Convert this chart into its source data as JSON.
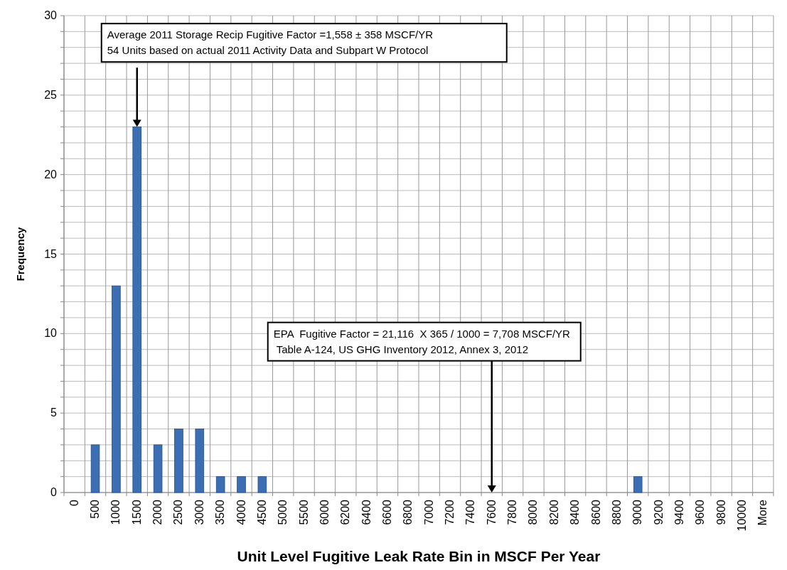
{
  "chart_data": {
    "type": "bar",
    "xlabel": "Unit Level Fugitive Leak Rate Bin in MSCF Per Year",
    "ylabel": "Frequency",
    "categories": [
      "0",
      "500",
      "1000",
      "1500",
      "2000",
      "2500",
      "3000",
      "3500",
      "4000",
      "4500",
      "5000",
      "5500",
      "6000",
      "6200",
      "6400",
      "6600",
      "6800",
      "7000",
      "7200",
      "7400",
      "7600",
      "7800",
      "8000",
      "8200",
      "8400",
      "8600",
      "8800",
      "9000",
      "9200",
      "9400",
      "9600",
      "9800",
      "10000",
      "More"
    ],
    "values": [
      0,
      3,
      13,
      23,
      3,
      4,
      4,
      1,
      1,
      1,
      0,
      0,
      0,
      0,
      0,
      0,
      0,
      0,
      0,
      0,
      0,
      0,
      0,
      0,
      0,
      0,
      0,
      1,
      0,
      0,
      0,
      0,
      0,
      0
    ],
    "color": "#3c6eb4",
    "ylim": [
      0,
      30
    ],
    "yticks": [
      0,
      {
        "value": 1,
        "label": null
      },
      {
        "value": 2,
        "label": null
      },
      {
        "value": 3,
        "label": null
      },
      {
        "value": 4,
        "label": null
      },
      5,
      {
        "value": 6,
        "label": null
      },
      {
        "value": 7,
        "label": null
      },
      {
        "value": 8,
        "label": null
      },
      {
        "value": 9,
        "label": null
      },
      10,
      {
        "value": 11,
        "label": null
      },
      {
        "value": 12,
        "label": null
      },
      {
        "value": 13,
        "label": null
      },
      {
        "value": 14,
        "label": null
      },
      15,
      {
        "value": 16,
        "label": null
      },
      {
        "value": 17,
        "label": null
      },
      {
        "value": 18,
        "label": null
      },
      {
        "value": 19,
        "label": null
      },
      20,
      {
        "value": 21,
        "label": null
      },
      {
        "value": 22,
        "label": null
      },
      {
        "value": 23,
        "label": null
      },
      {
        "value": 24,
        "label": null
      },
      25,
      {
        "value": 26,
        "label": null
      },
      {
        "value": 27,
        "label": null
      },
      {
        "value": 28,
        "label": null
      },
      {
        "value": 29,
        "label": null
      },
      30
    ],
    "grid": true,
    "annotations": [
      {
        "text": "Average 2011 Storage Recip Fugitive Factor =1,558 ± 358 MSCF/YR\n54 Units based on actual 2011 Activity Data and Subpart W Protocol",
        "x": "1500",
        "y": 23
      },
      {
        "text": "EPA  Fugitive Factor = 21,116  X 365 / 1000 = 7,708 MSCF/YR\n Table A-124, US GHG Inventory 2012, Annex 3, 2012",
        "x": "7600",
        "y": 0
      }
    ]
  }
}
